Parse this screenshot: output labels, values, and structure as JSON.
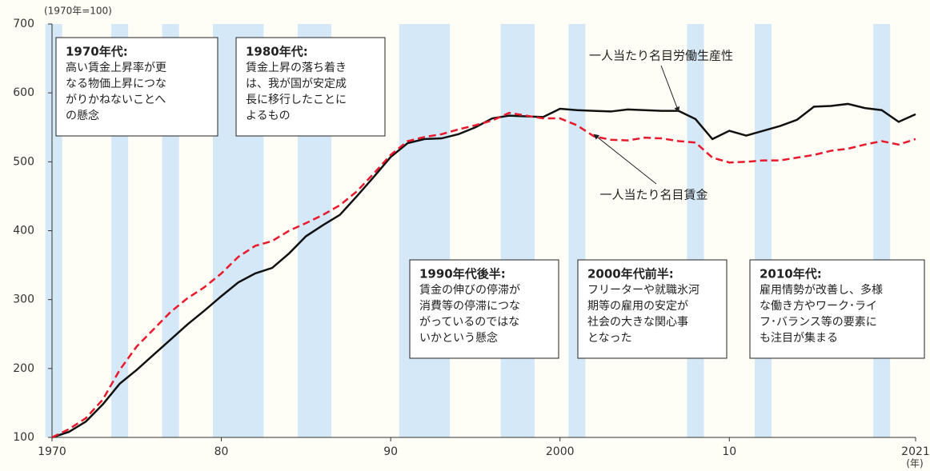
{
  "chart_data": {
    "type": "line",
    "y_unit": "(1970年=100)",
    "x_unit": "(年)",
    "x": [
      1970,
      1971,
      1972,
      1973,
      1974,
      1975,
      1976,
      1977,
      1978,
      1979,
      1980,
      1981,
      1982,
      1983,
      1984,
      1985,
      1986,
      1987,
      1988,
      1989,
      1990,
      1991,
      1992,
      1993,
      1994,
      1995,
      1996,
      1997,
      1998,
      1999,
      2000,
      2001,
      2002,
      2003,
      2004,
      2005,
      2006,
      2007,
      2008,
      2009,
      2010,
      2011,
      2012,
      2013,
      2014,
      2015,
      2016,
      2017,
      2018,
      2019,
      2020,
      2021
    ],
    "series": [
      {
        "name": "一人当たり名目労働生産性",
        "color": "#111111",
        "dash": false,
        "values": [
          100,
          108,
          123,
          148,
          178,
          198,
          220,
          242,
          264,
          284,
          305,
          325,
          338,
          346,
          367,
          392,
          408,
          423,
          450,
          478,
          507,
          527,
          533,
          534,
          540,
          550,
          563,
          567,
          566,
          565,
          577,
          575,
          574,
          573,
          576,
          575,
          574,
          574,
          562,
          533,
          545,
          538,
          545,
          552,
          561,
          580,
          581,
          584,
          578,
          575,
          558,
          569
        ]
      },
      {
        "name": "一人当たり名目賃金",
        "color": "#e8192c",
        "dash": true,
        "values": [
          100,
          112,
          128,
          155,
          198,
          232,
          257,
          282,
          302,
          318,
          338,
          362,
          378,
          385,
          400,
          411,
          423,
          437,
          457,
          483,
          510,
          530,
          536,
          540,
          547,
          553,
          560,
          571,
          567,
          563,
          563,
          553,
          537,
          532,
          531,
          535,
          534,
          530,
          528,
          506,
          499,
          500,
          502,
          502,
          506,
          510,
          516,
          519,
          525,
          530,
          525,
          533
        ]
      }
    ],
    "shaded_periods": [
      [
        1969.6,
        1970.6
      ],
      [
        1973.5,
        1974.5
      ],
      [
        1976.5,
        1977.5
      ],
      [
        1979.5,
        1982.5
      ],
      [
        1984.5,
        1986.5
      ],
      [
        1990.5,
        1993.5
      ],
      [
        1996.5,
        1998.5
      ],
      [
        2000.5,
        2001.5
      ],
      [
        2007.5,
        2008.5
      ],
      [
        2011.5,
        2012.5
      ],
      [
        2018.5,
        2019.5
      ]
    ],
    "shade_color": "#d5e8f7",
    "xlim": [
      1970,
      2021
    ],
    "ylim": [
      100,
      700
    ],
    "xticks": [
      1970,
      {
        "value": 1980,
        "label": "80"
      },
      {
        "value": 1990,
        "label": "90"
      },
      2000,
      {
        "value": 2010,
        "label": "10"
      },
      2021
    ],
    "yticks": [
      100,
      200,
      300,
      400,
      500,
      600,
      700
    ],
    "annotations": [
      {
        "title": "1970年代:",
        "lines": [
          "高い賃金上昇率が更",
          "なる物価上昇につな",
          "がりかねないことへ",
          "の懸念"
        ]
      },
      {
        "title": "1980年代:",
        "lines": [
          "賃金上昇の落ち着き",
          "は、我が国が安定成",
          "長に移行したことに",
          "よるもの"
        ]
      },
      {
        "title": "1990年代後半:",
        "lines": [
          "賃金の伸びの停滞が",
          "消費等の停滞につな",
          "がっているのではな",
          "いかという懸念"
        ]
      },
      {
        "title": "2000年代前半:",
        "lines": [
          "フリーターや就職氷河",
          "期等の雇用の安定が",
          "社会の大きな関心事",
          "となった"
        ]
      },
      {
        "title": "2010年代:",
        "lines": [
          "雇用情勢が改善し、多様",
          "な働き方やワーク･ライ",
          "フ･バランス等の要素に",
          "も注目が集まる"
        ]
      }
    ]
  }
}
